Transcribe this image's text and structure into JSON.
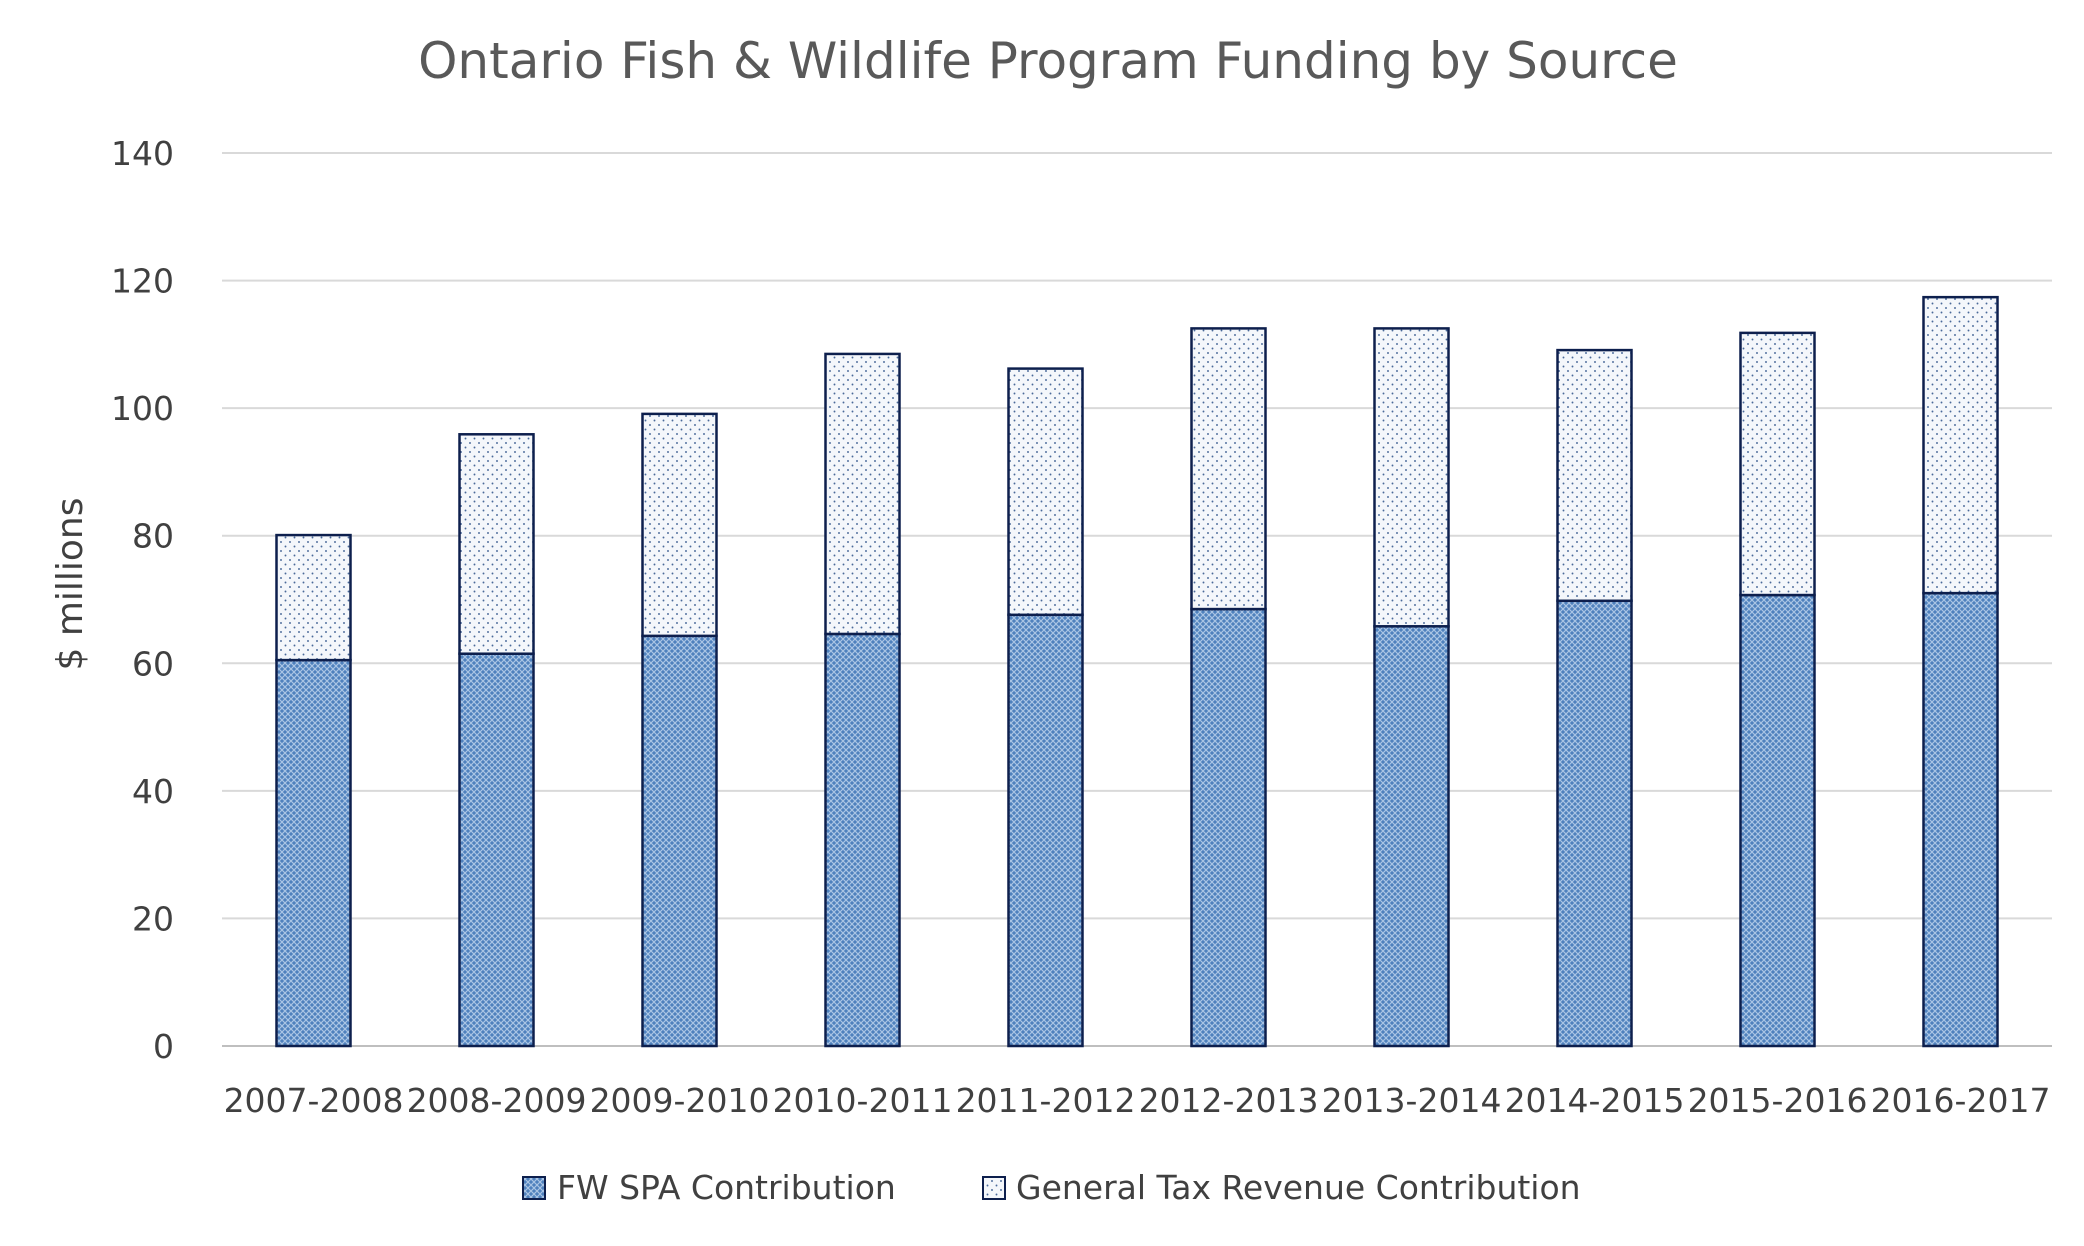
{
  "chart_data": {
    "type": "bar",
    "stacked": true,
    "title": "Ontario Fish & Wildlife Program Funding by Source",
    "xlabel": "",
    "ylabel": "$ millions",
    "ylim": [
      0,
      140
    ],
    "yticks": [
      0,
      20,
      40,
      60,
      80,
      100,
      120,
      140
    ],
    "grid": true,
    "legend_position": "bottom",
    "categories": [
      "2007-2008",
      "2008-2009",
      "2009-2010",
      "2010-2011",
      "2011-2012",
      "2012-2013",
      "2013-2014",
      "2014-2015",
      "2015-2016",
      "2016-2017"
    ],
    "series": [
      {
        "name": "FW SPA Contribution",
        "pattern": "dense-crosshatch",
        "color": "#4f81bd",
        "values": [
          60.5,
          61.5,
          64.3,
          64.6,
          67.6,
          68.5,
          65.8,
          69.8,
          70.7,
          71.0
        ]
      },
      {
        "name": "General Tax Revenue Contribution",
        "pattern": "sparse-dots",
        "color": "#f2f5fa",
        "values": [
          19.6,
          34.4,
          34.8,
          43.9,
          38.6,
          44.0,
          46.7,
          39.3,
          41.1,
          46.4
        ]
      }
    ]
  }
}
